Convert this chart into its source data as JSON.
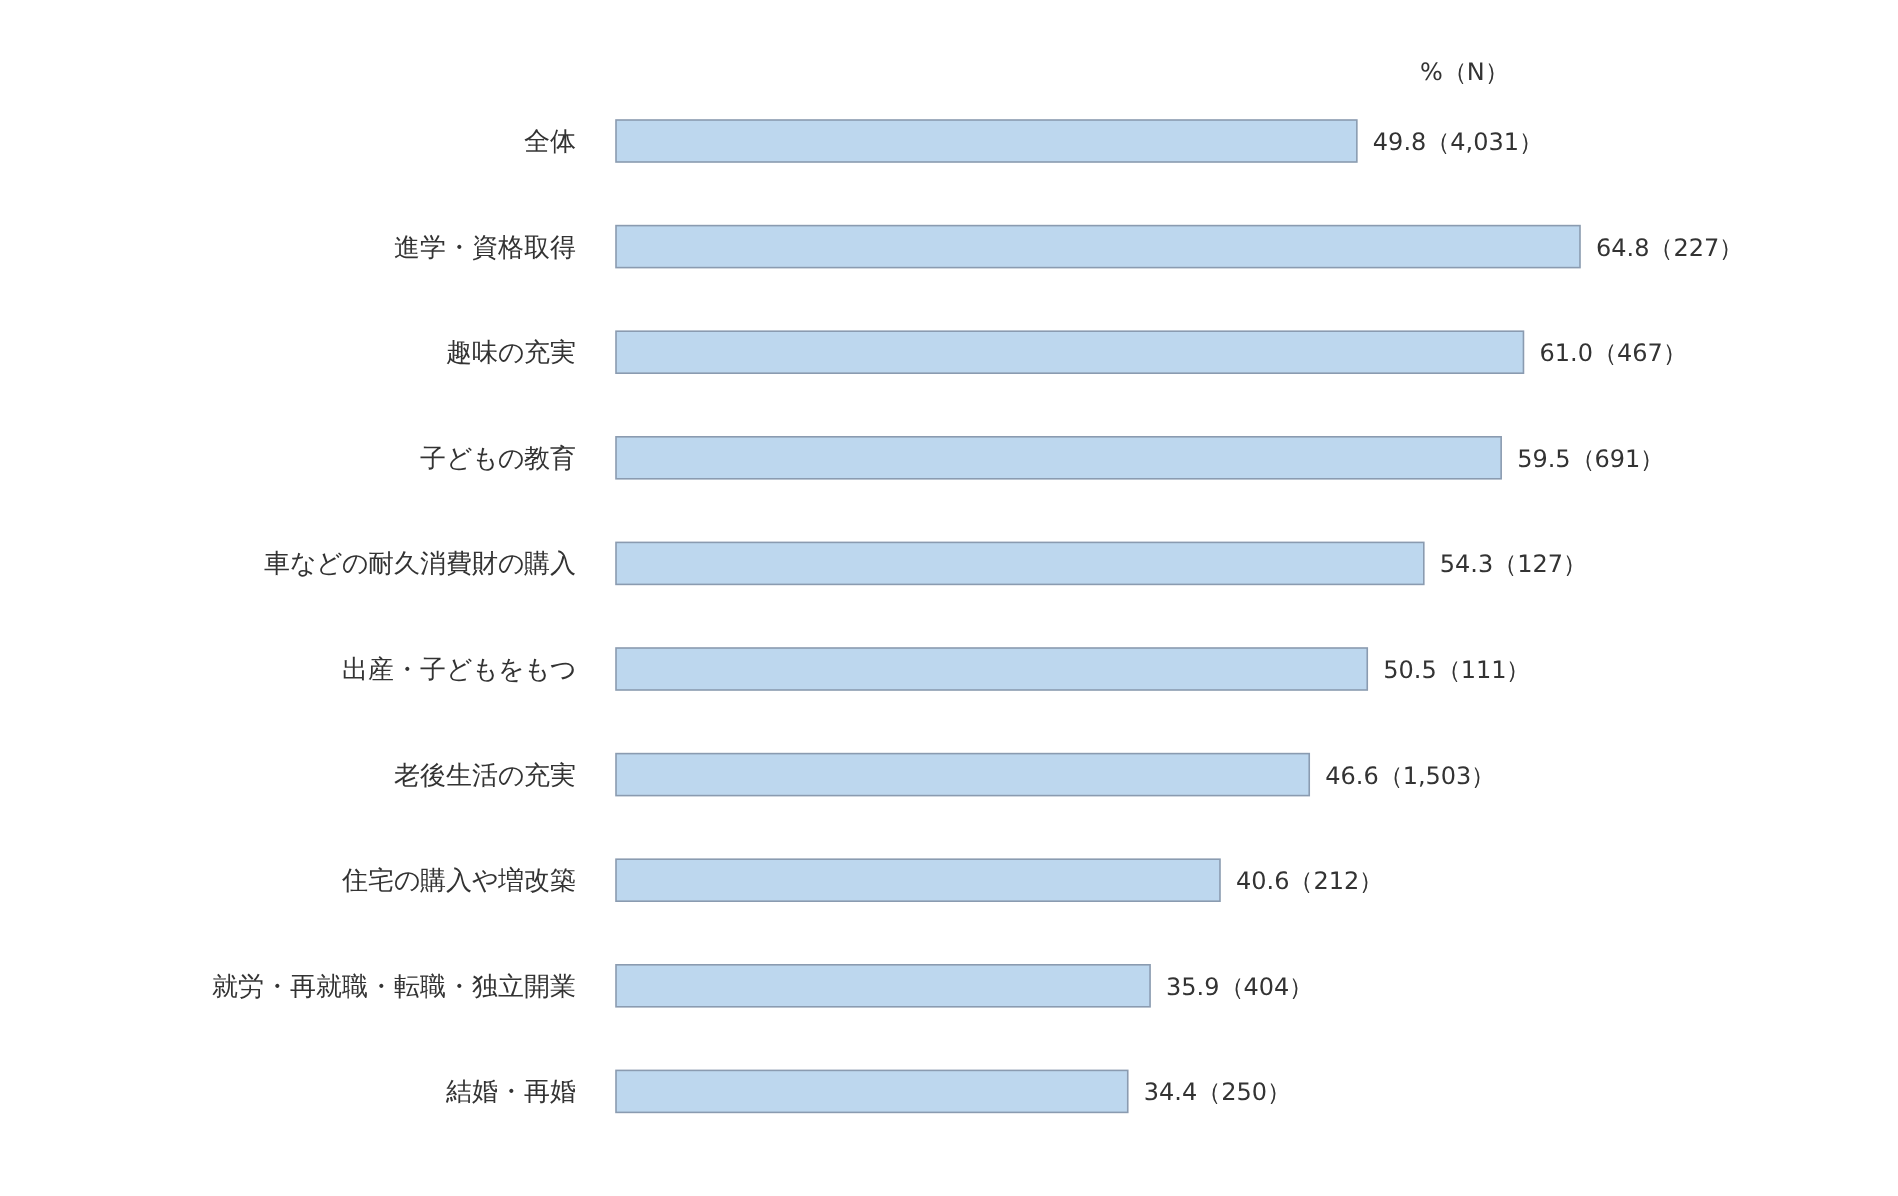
{
  "chart_data": {
    "type": "bar",
    "orientation": "horizontal",
    "categories": [
      "全体",
      "進学・資格取得",
      "趣味の充実",
      "子どもの教育",
      "車などの耐久消費財の購入",
      "出産・子どもをもつ",
      "老後生活の充実",
      "住宅の購入や増改築",
      "就労・再就職・転職・独立開業",
      "結婚・再婚"
    ],
    "values": [
      49.8,
      64.8,
      61.0,
      59.5,
      54.3,
      50.5,
      46.6,
      40.6,
      35.9,
      34.4
    ],
    "value_labels": [
      "49.8（4,031）",
      "64.8（227）",
      "61.0（467）",
      "59.5（691）",
      "54.3（127）",
      "50.5（111）",
      "46.6（1,503）",
      "40.6（212）",
      "35.9（404）",
      "34.4（250）"
    ],
    "color": "#bdd7ee",
    "annotations": [
      "%（N）"
    ]
  }
}
